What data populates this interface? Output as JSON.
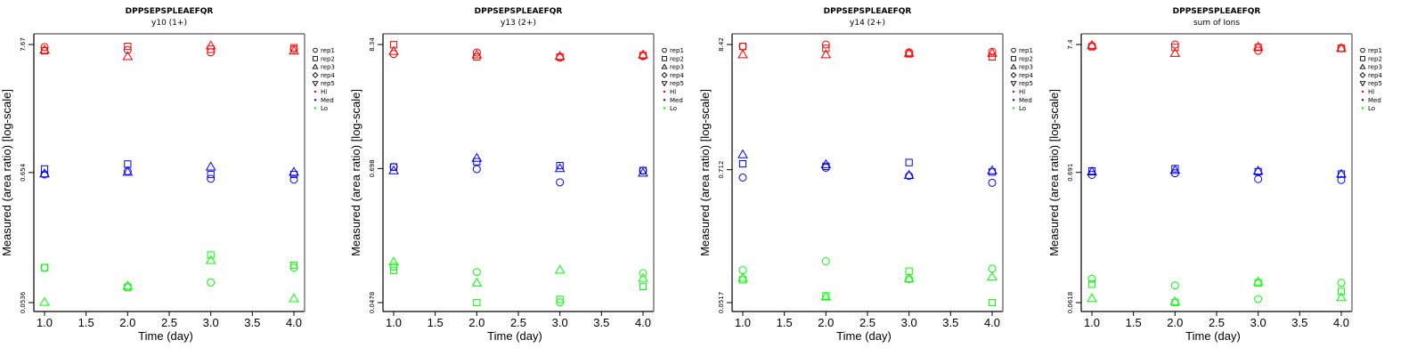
{
  "chart_data": [
    {
      "type": "scatter",
      "title": "DPPSEPSPLEAEFQR",
      "subtitle": "y10 (1+)",
      "xlabel": "Time (day)",
      "ylabel": "Measured (area ratio) [log-scale]",
      "yscale": "log",
      "xlim": [
        0.9,
        4.1
      ],
      "ylim": [
        0.0536,
        7.67
      ],
      "xticks": [
        "1.0",
        "1.5",
        "2.0",
        "2.5",
        "3.0",
        "3.5",
        "4.0"
      ],
      "yticks": [
        "0.0536",
        "0.654",
        "7.67"
      ],
      "ytick_values": [
        0.0536,
        0.654,
        7.67
      ],
      "points": [
        {
          "group": "Hi",
          "rep": "rep1",
          "x": 1,
          "y": 7.3
        },
        {
          "group": "Hi",
          "rep": "rep2",
          "x": 1,
          "y": 6.8
        },
        {
          "group": "Hi",
          "rep": "rep3",
          "x": 1,
          "y": 6.9
        },
        {
          "group": "Hi",
          "rep": "rep1",
          "x": 2,
          "y": 6.9
        },
        {
          "group": "Hi",
          "rep": "rep2",
          "x": 2,
          "y": 7.4
        },
        {
          "group": "Hi",
          "rep": "rep3",
          "x": 2,
          "y": 6.1
        },
        {
          "group": "Hi",
          "rep": "rep1",
          "x": 3,
          "y": 6.6
        },
        {
          "group": "Hi",
          "rep": "rep2",
          "x": 3,
          "y": 7.0
        },
        {
          "group": "Hi",
          "rep": "rep3",
          "x": 3,
          "y": 7.5
        },
        {
          "group": "Hi",
          "rep": "rep1",
          "x": 4,
          "y": 7.0
        },
        {
          "group": "Hi",
          "rep": "rep2",
          "x": 4,
          "y": 7.2
        },
        {
          "group": "Hi",
          "rep": "rep3",
          "x": 4,
          "y": 6.8
        },
        {
          "group": "Med",
          "rep": "rep1",
          "x": 1,
          "y": 0.63
        },
        {
          "group": "Med",
          "rep": "rep2",
          "x": 1,
          "y": 0.7
        },
        {
          "group": "Med",
          "rep": "rep3",
          "x": 1,
          "y": 0.64
        },
        {
          "group": "Med",
          "rep": "rep1",
          "x": 2,
          "y": 0.67
        },
        {
          "group": "Med",
          "rep": "rep2",
          "x": 2,
          "y": 0.77
        },
        {
          "group": "Med",
          "rep": "rep3",
          "x": 2,
          "y": 0.66
        },
        {
          "group": "Med",
          "rep": "rep1",
          "x": 3,
          "y": 0.58
        },
        {
          "group": "Med",
          "rep": "rep2",
          "x": 3,
          "y": 0.63
        },
        {
          "group": "Med",
          "rep": "rep3",
          "x": 3,
          "y": 0.73
        },
        {
          "group": "Med",
          "rep": "rep1",
          "x": 4,
          "y": 0.57
        },
        {
          "group": "Med",
          "rep": "rep2",
          "x": 4,
          "y": 0.63
        },
        {
          "group": "Med",
          "rep": "rep3",
          "x": 4,
          "y": 0.66
        },
        {
          "group": "Lo",
          "rep": "rep1",
          "x": 1,
          "y": 0.105
        },
        {
          "group": "Lo",
          "rep": "rep2",
          "x": 1,
          "y": 0.105
        },
        {
          "group": "Lo",
          "rep": "rep3",
          "x": 1,
          "y": 0.054
        },
        {
          "group": "Lo",
          "rep": "rep1",
          "x": 2,
          "y": 0.072
        },
        {
          "group": "Lo",
          "rep": "rep2",
          "x": 2,
          "y": 0.072
        },
        {
          "group": "Lo",
          "rep": "rep3",
          "x": 2,
          "y": 0.074
        },
        {
          "group": "Lo",
          "rep": "rep1",
          "x": 3,
          "y": 0.079
        },
        {
          "group": "Lo",
          "rep": "rep2",
          "x": 3,
          "y": 0.134
        },
        {
          "group": "Lo",
          "rep": "rep3",
          "x": 3,
          "y": 0.121
        },
        {
          "group": "Lo",
          "rep": "rep1",
          "x": 4,
          "y": 0.105
        },
        {
          "group": "Lo",
          "rep": "rep2",
          "x": 4,
          "y": 0.11
        },
        {
          "group": "Lo",
          "rep": "rep3",
          "x": 4,
          "y": 0.058
        }
      ]
    },
    {
      "type": "scatter",
      "title": "DPPSEPSPLEAEFQR",
      "subtitle": "y13 (2+)",
      "xlabel": "Time (day)",
      "ylabel": "Measured (area ratio) [log-scale]",
      "yscale": "log",
      "xlim": [
        0.9,
        4.1
      ],
      "ylim": [
        0.0478,
        8.34
      ],
      "xticks": [
        "1.0",
        "1.5",
        "2.0",
        "2.5",
        "3.0",
        "3.5",
        "4.0"
      ],
      "yticks": [
        "0.0478",
        "0.698",
        "8.34"
      ],
      "ytick_values": [
        0.0478,
        0.698,
        8.34
      ],
      "points": [
        {
          "group": "Hi",
          "rep": "rep1",
          "x": 1,
          "y": 6.9
        },
        {
          "group": "Hi",
          "rep": "rep2",
          "x": 1,
          "y": 8.3
        },
        {
          "group": "Hi",
          "rep": "rep3",
          "x": 1,
          "y": 7.3
        },
        {
          "group": "Hi",
          "rep": "rep1",
          "x": 2,
          "y": 7.1
        },
        {
          "group": "Hi",
          "rep": "rep2",
          "x": 2,
          "y": 6.5
        },
        {
          "group": "Hi",
          "rep": "rep3",
          "x": 2,
          "y": 6.8
        },
        {
          "group": "Hi",
          "rep": "rep1",
          "x": 3,
          "y": 6.4
        },
        {
          "group": "Hi",
          "rep": "rep2",
          "x": 3,
          "y": 6.5
        },
        {
          "group": "Hi",
          "rep": "rep3",
          "x": 3,
          "y": 6.6
        },
        {
          "group": "Hi",
          "rep": "rep1",
          "x": 4,
          "y": 6.6
        },
        {
          "group": "Hi",
          "rep": "rep2",
          "x": 4,
          "y": 6.7
        },
        {
          "group": "Hi",
          "rep": "rep3",
          "x": 4,
          "y": 6.8
        },
        {
          "group": "Med",
          "rep": "rep1",
          "x": 1,
          "y": 0.72
        },
        {
          "group": "Med",
          "rep": "rep2",
          "x": 1,
          "y": 0.72
        },
        {
          "group": "Med",
          "rep": "rep3",
          "x": 1,
          "y": 0.67
        },
        {
          "group": "Med",
          "rep": "rep1",
          "x": 2,
          "y": 0.69
        },
        {
          "group": "Med",
          "rep": "rep2",
          "x": 2,
          "y": 0.8
        },
        {
          "group": "Med",
          "rep": "rep3",
          "x": 2,
          "y": 0.86
        },
        {
          "group": "Med",
          "rep": "rep1",
          "x": 3,
          "y": 0.53
        },
        {
          "group": "Med",
          "rep": "rep2",
          "x": 3,
          "y": 0.74
        },
        {
          "group": "Med",
          "rep": "rep3",
          "x": 3,
          "y": 0.7
        },
        {
          "group": "Med",
          "rep": "rep1",
          "x": 4,
          "y": 0.67
        },
        {
          "group": "Med",
          "rep": "rep2",
          "x": 4,
          "y": 0.67
        },
        {
          "group": "Med",
          "rep": "rep3",
          "x": 4,
          "y": 0.64
        },
        {
          "group": "Lo",
          "rep": "rep1",
          "x": 1,
          "y": 0.098
        },
        {
          "group": "Lo",
          "rep": "rep2",
          "x": 1,
          "y": 0.091
        },
        {
          "group": "Lo",
          "rep": "rep3",
          "x": 1,
          "y": 0.108
        },
        {
          "group": "Lo",
          "rep": "rep1",
          "x": 2,
          "y": 0.088
        },
        {
          "group": "Lo",
          "rep": "rep2",
          "x": 2,
          "y": 0.0478
        },
        {
          "group": "Lo",
          "rep": "rep3",
          "x": 2,
          "y": 0.071
        },
        {
          "group": "Lo",
          "rep": "rep1",
          "x": 3,
          "y": 0.048
        },
        {
          "group": "Lo",
          "rep": "rep2",
          "x": 3,
          "y": 0.051
        },
        {
          "group": "Lo",
          "rep": "rep3",
          "x": 3,
          "y": 0.092
        },
        {
          "group": "Lo",
          "rep": "rep1",
          "x": 4,
          "y": 0.086
        },
        {
          "group": "Lo",
          "rep": "rep2",
          "x": 4,
          "y": 0.066
        },
        {
          "group": "Lo",
          "rep": "rep3",
          "x": 4,
          "y": 0.078
        }
      ]
    },
    {
      "type": "scatter",
      "title": "DPPSEPSPLEAEFQR",
      "subtitle": "y14 (2+)",
      "xlabel": "Time (day)",
      "ylabel": "Measured (area ratio) [log-scale]",
      "yscale": "log",
      "xlim": [
        0.9,
        4.1
      ],
      "ylim": [
        0.0517,
        8.42
      ],
      "xticks": [
        "1.0",
        "1.5",
        "2.0",
        "2.5",
        "3.0",
        "3.5",
        "4.0"
      ],
      "yticks": [
        "0.0517",
        "0.712",
        "8.42"
      ],
      "ytick_values": [
        0.0517,
        0.712,
        8.42
      ],
      "points": [
        {
          "group": "Hi",
          "rep": "rep1",
          "x": 1,
          "y": 8.1
        },
        {
          "group": "Hi",
          "rep": "rep2",
          "x": 1,
          "y": 8.1
        },
        {
          "group": "Hi",
          "rep": "rep3",
          "x": 1,
          "y": 6.9
        },
        {
          "group": "Hi",
          "rep": "rep1",
          "x": 2,
          "y": 8.4
        },
        {
          "group": "Hi",
          "rep": "rep2",
          "x": 2,
          "y": 7.8
        },
        {
          "group": "Hi",
          "rep": "rep3",
          "x": 2,
          "y": 6.9
        },
        {
          "group": "Hi",
          "rep": "rep1",
          "x": 3,
          "y": 7.2
        },
        {
          "group": "Hi",
          "rep": "rep2",
          "x": 3,
          "y": 7.0
        },
        {
          "group": "Hi",
          "rep": "rep3",
          "x": 3,
          "y": 7.1
        },
        {
          "group": "Hi",
          "rep": "rep1",
          "x": 4,
          "y": 7.3
        },
        {
          "group": "Hi",
          "rep": "rep2",
          "x": 4,
          "y": 6.6
        },
        {
          "group": "Hi",
          "rep": "rep3",
          "x": 4,
          "y": 7.1
        },
        {
          "group": "Med",
          "rep": "rep1",
          "x": 1,
          "y": 0.61
        },
        {
          "group": "Med",
          "rep": "rep2",
          "x": 1,
          "y": 0.8
        },
        {
          "group": "Med",
          "rep": "rep3",
          "x": 1,
          "y": 0.96
        },
        {
          "group": "Med",
          "rep": "rep1",
          "x": 2,
          "y": 0.74
        },
        {
          "group": "Med",
          "rep": "rep2",
          "x": 2,
          "y": 0.76
        },
        {
          "group": "Med",
          "rep": "rep3",
          "x": 2,
          "y": 0.79
        },
        {
          "group": "Med",
          "rep": "rep1",
          "x": 3,
          "y": 0.63
        },
        {
          "group": "Med",
          "rep": "rep2",
          "x": 3,
          "y": 0.82
        },
        {
          "group": "Med",
          "rep": "rep3",
          "x": 3,
          "y": 0.64
        },
        {
          "group": "Med",
          "rep": "rep1",
          "x": 4,
          "y": 0.55
        },
        {
          "group": "Med",
          "rep": "rep2",
          "x": 4,
          "y": 0.68
        },
        {
          "group": "Med",
          "rep": "rep3",
          "x": 4,
          "y": 0.7
        },
        {
          "group": "Lo",
          "rep": "rep1",
          "x": 1,
          "y": 0.098
        },
        {
          "group": "Lo",
          "rep": "rep2",
          "x": 1,
          "y": 0.081
        },
        {
          "group": "Lo",
          "rep": "rep3",
          "x": 1,
          "y": 0.084
        },
        {
          "group": "Lo",
          "rep": "rep1",
          "x": 2,
          "y": 0.117
        },
        {
          "group": "Lo",
          "rep": "rep2",
          "x": 2,
          "y": 0.059
        },
        {
          "group": "Lo",
          "rep": "rep3",
          "x": 2,
          "y": 0.058
        },
        {
          "group": "Lo",
          "rep": "rep1",
          "x": 3,
          "y": 0.082
        },
        {
          "group": "Lo",
          "rep": "rep2",
          "x": 3,
          "y": 0.096
        },
        {
          "group": "Lo",
          "rep": "rep3",
          "x": 3,
          "y": 0.083
        },
        {
          "group": "Lo",
          "rep": "rep1",
          "x": 4,
          "y": 0.101
        },
        {
          "group": "Lo",
          "rep": "rep2",
          "x": 4,
          "y": 0.0517
        },
        {
          "group": "Lo",
          "rep": "rep3",
          "x": 4,
          "y": 0.086
        }
      ]
    },
    {
      "type": "scatter",
      "title": "DPPSEPSPLEAEFQR",
      "subtitle": "sum of Ions",
      "xlabel": "Time (day)",
      "ylabel": "Measured (area ratio) [log-scale]",
      "yscale": "log",
      "xlim": [
        0.9,
        4.1
      ],
      "ylim": [
        0.0618,
        7.4
      ],
      "xticks": [
        "1.0",
        "1.5",
        "2.0",
        "2.5",
        "3.0",
        "3.5",
        "4.0"
      ],
      "yticks": [
        "0.0618",
        "0.691",
        "7.4"
      ],
      "ytick_values": [
        0.0618,
        0.691,
        7.4
      ],
      "points": [
        {
          "group": "Hi",
          "rep": "rep1",
          "x": 1,
          "y": 7.2
        },
        {
          "group": "Hi",
          "rep": "rep2",
          "x": 1,
          "y": 7.1
        },
        {
          "group": "Hi",
          "rep": "rep3",
          "x": 1,
          "y": 7.3
        },
        {
          "group": "Hi",
          "rep": "rep1",
          "x": 2,
          "y": 7.4
        },
        {
          "group": "Hi",
          "rep": "rep2",
          "x": 2,
          "y": 7.0
        },
        {
          "group": "Hi",
          "rep": "rep3",
          "x": 2,
          "y": 6.3
        },
        {
          "group": "Hi",
          "rep": "rep1",
          "x": 3,
          "y": 6.6
        },
        {
          "group": "Hi",
          "rep": "rep2",
          "x": 3,
          "y": 7.0
        },
        {
          "group": "Hi",
          "rep": "rep3",
          "x": 3,
          "y": 7.1
        },
        {
          "group": "Hi",
          "rep": "rep1",
          "x": 4,
          "y": 6.9
        },
        {
          "group": "Hi",
          "rep": "rep2",
          "x": 4,
          "y": 6.9
        },
        {
          "group": "Hi",
          "rep": "rep3",
          "x": 4,
          "y": 6.9
        },
        {
          "group": "Med",
          "rep": "rep1",
          "x": 1,
          "y": 0.66
        },
        {
          "group": "Med",
          "rep": "rep2",
          "x": 1,
          "y": 0.71
        },
        {
          "group": "Med",
          "rep": "rep3",
          "x": 1,
          "y": 0.7
        },
        {
          "group": "Med",
          "rep": "rep1",
          "x": 2,
          "y": 0.68
        },
        {
          "group": "Med",
          "rep": "rep2",
          "x": 2,
          "y": 0.74
        },
        {
          "group": "Med",
          "rep": "rep3",
          "x": 2,
          "y": 0.72
        },
        {
          "group": "Med",
          "rep": "rep1",
          "x": 3,
          "y": 0.61
        },
        {
          "group": "Med",
          "rep": "rep2",
          "x": 3,
          "y": 0.7
        },
        {
          "group": "Med",
          "rep": "rep3",
          "x": 3,
          "y": 0.71
        },
        {
          "group": "Med",
          "rep": "rep1",
          "x": 4,
          "y": 0.6
        },
        {
          "group": "Med",
          "rep": "rep2",
          "x": 4,
          "y": 0.67
        },
        {
          "group": "Med",
          "rep": "rep3",
          "x": 4,
          "y": 0.67
        },
        {
          "group": "Lo",
          "rep": "rep1",
          "x": 1,
          "y": 0.096
        },
        {
          "group": "Lo",
          "rep": "rep2",
          "x": 1,
          "y": 0.087
        },
        {
          "group": "Lo",
          "rep": "rep3",
          "x": 1,
          "y": 0.067
        },
        {
          "group": "Lo",
          "rep": "rep1",
          "x": 2,
          "y": 0.085
        },
        {
          "group": "Lo",
          "rep": "rep2",
          "x": 2,
          "y": 0.062
        },
        {
          "group": "Lo",
          "rep": "rep3",
          "x": 2,
          "y": 0.063
        },
        {
          "group": "Lo",
          "rep": "rep1",
          "x": 3,
          "y": 0.066
        },
        {
          "group": "Lo",
          "rep": "rep2",
          "x": 3,
          "y": 0.089
        },
        {
          "group": "Lo",
          "rep": "rep3",
          "x": 3,
          "y": 0.091
        },
        {
          "group": "Lo",
          "rep": "rep1",
          "x": 4,
          "y": 0.089
        },
        {
          "group": "Lo",
          "rep": "rep2",
          "x": 4,
          "y": 0.076
        },
        {
          "group": "Lo",
          "rep": "rep3",
          "x": 4,
          "y": 0.068
        }
      ]
    }
  ],
  "legend": {
    "placement": "right",
    "shapes": [
      {
        "label": "rep1",
        "symbol": "circle"
      },
      {
        "label": "rep2",
        "symbol": "square"
      },
      {
        "label": "rep3",
        "symbol": "triangle-up"
      },
      {
        "label": "rep4",
        "symbol": "diamond"
      },
      {
        "label": "rep5",
        "symbol": "triangle-down"
      }
    ],
    "groups": [
      {
        "label": "Hi",
        "color": "#ff0000"
      },
      {
        "label": "Med",
        "color": "#0000ff"
      },
      {
        "label": "Lo",
        "color": "#00ff00"
      }
    ]
  },
  "colors": {
    "Hi": "#ff0000",
    "Med": "#0000ff",
    "Lo": "#00ff00",
    "frame": "#000000",
    "frame_right": "#808080"
  }
}
